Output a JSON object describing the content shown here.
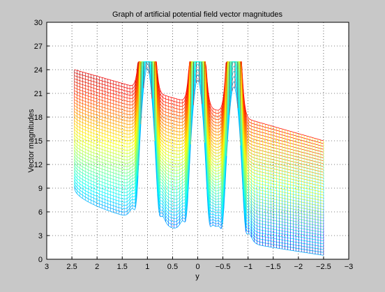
{
  "chart_data": {
    "type": "line",
    "title": "Graph of artificial potential field vector magnitudes",
    "xlabel": "y",
    "ylabel": "Vector magnitudes",
    "xlim": [
      3,
      -3
    ],
    "ylim": [
      0,
      30
    ],
    "x_ticks": [
      "3",
      "2.5",
      "2",
      "1.5",
      "1",
      "0.5",
      "0",
      "−0.5",
      "−1",
      "−1.5",
      "−2",
      "−2.5",
      "−3"
    ],
    "y_ticks": [
      "0",
      "3",
      "6",
      "9",
      "12",
      "15",
      "18",
      "21",
      "24",
      "27",
      "30"
    ],
    "x_reversed": true,
    "grid": true,
    "colormap": "jet",
    "surface": {
      "x_range": [
        2.45,
        -2.5
      ],
      "edge_high_top": 24,
      "edge_high_bottom": 15,
      "edge_low_top": 9,
      "edge_low_bottom": 0.5,
      "clip_value": 25
    },
    "peaks": [
      {
        "x": 1.0,
        "peak": 25
      },
      {
        "x": 0.0,
        "peak": 25
      },
      {
        "x": -0.72,
        "peak": 25
      }
    ]
  },
  "colors": {
    "background": "#c8c8c8",
    "axes": "#ffffff",
    "grid": "#000000"
  }
}
